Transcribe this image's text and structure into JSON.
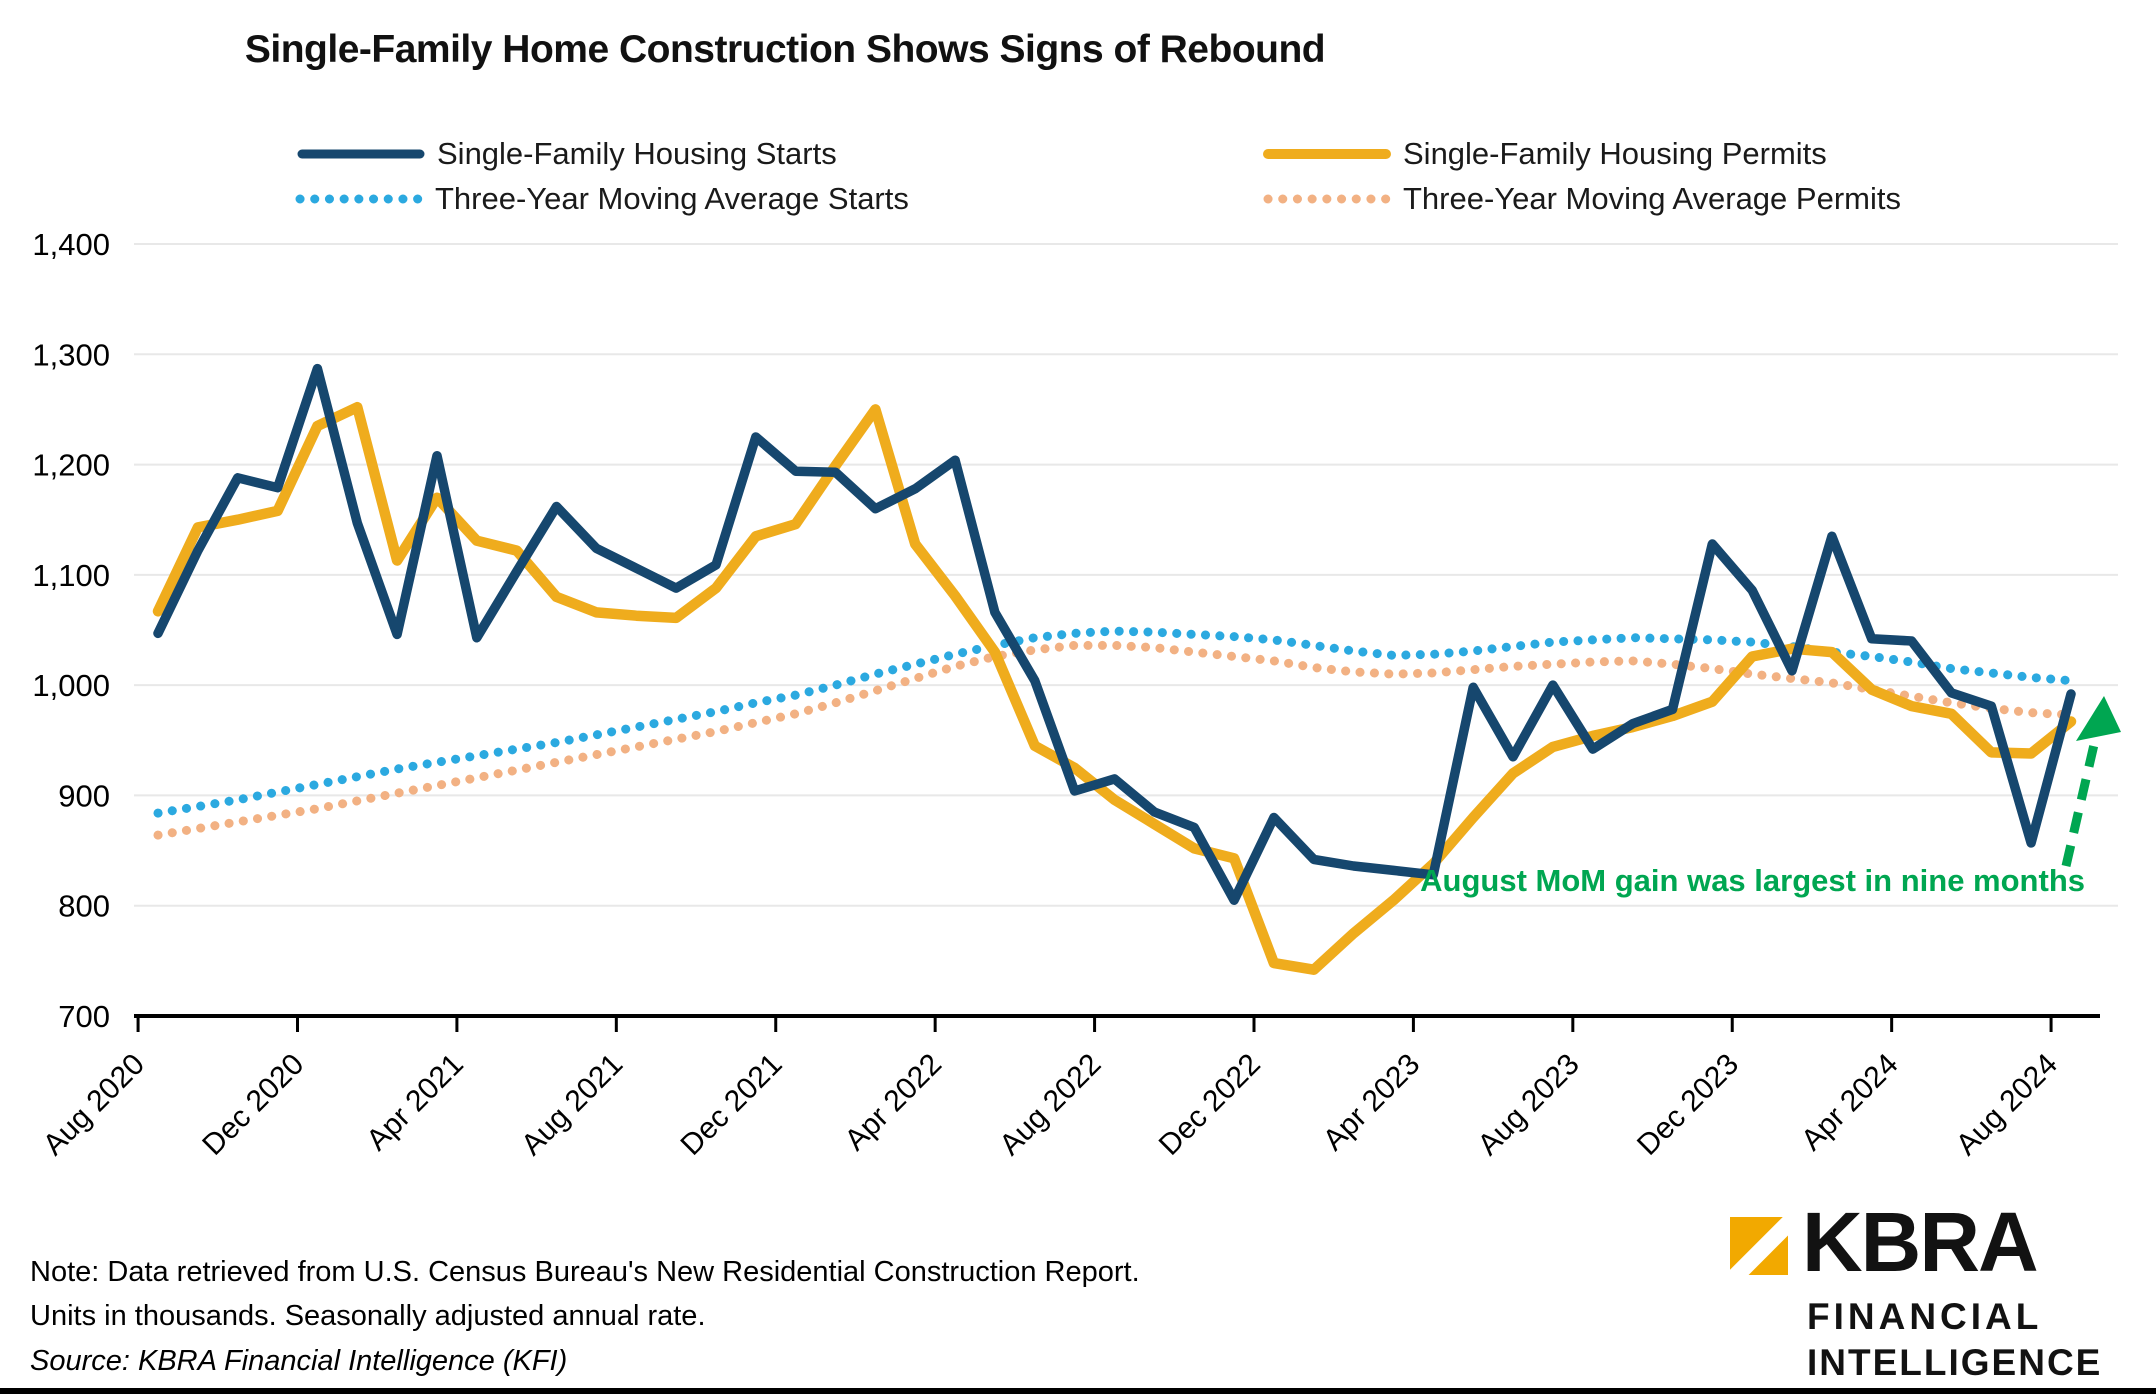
{
  "title": "Single-Family Home Construction Shows Signs of Rebound",
  "notes": {
    "line1": "Note: Data retrieved from U.S. Census Bureau's New Residential Construction Report.",
    "line2": "Units in thousands. Seasonally adjusted annual rate.",
    "source": "Source: KBRA Financial Intelligence (KFI)"
  },
  "logo": {
    "brand": "KBRA",
    "line1": "FINANCIAL",
    "line2": "INTELLIGENCE",
    "mark_color": "#F2A900"
  },
  "colors": {
    "starts": "#16476E",
    "permits": "#EFAC1D",
    "ma_starts": "#2BA9E0",
    "ma_permits": "#F2B183",
    "annotation_green": "#00A651",
    "gridline": "#E8E8E8",
    "axis": "#000000"
  },
  "chart_data": {
    "type": "line",
    "title": "Single-Family Home Construction Shows Signs of Rebound",
    "xlabel": "",
    "ylabel": "",
    "ylim": [
      700,
      1400
    ],
    "ytick_step": 100,
    "grid": "horizontal",
    "legend_position": "top",
    "x_labels": [
      "Aug 2020",
      "Sep 2020",
      "Oct 2020",
      "Nov 2020",
      "Dec 2020",
      "Jan 2021",
      "Feb 2021",
      "Mar 2021",
      "Apr 2021",
      "May 2021",
      "Jun 2021",
      "Jul 2021",
      "Aug 2021",
      "Sep 2021",
      "Oct 2021",
      "Nov 2021",
      "Dec 2021",
      "Jan 2022",
      "Feb 2022",
      "Mar 2022",
      "Apr 2022",
      "May 2022",
      "Jun 2022",
      "Jul 2022",
      "Aug 2022",
      "Sep 2022",
      "Oct 2022",
      "Nov 2022",
      "Dec 2022",
      "Jan 2023",
      "Feb 2023",
      "Mar 2023",
      "Apr 2023",
      "May 2023",
      "Jun 2023",
      "Jul 2023",
      "Aug 2023",
      "Sep 2023",
      "Oct 2023",
      "Nov 2023",
      "Dec 2023",
      "Jan 2024",
      "Feb 2024",
      "Mar 2024",
      "Apr 2024",
      "May 2024",
      "Jun 2024",
      "Jul 2024",
      "Aug 2024"
    ],
    "xtick_labels": [
      "Aug 2020",
      "Dec 2020",
      "Apr 2021",
      "Aug 2021",
      "Dec 2021",
      "Apr 2022",
      "Aug 2022",
      "Dec 2022",
      "Apr 2023",
      "Aug 2023",
      "Dec 2023",
      "Apr 2024",
      "Aug 2024"
    ],
    "ytick_labels": [
      "700",
      "800",
      "900",
      "1,000",
      "1,100",
      "1,200",
      "1,300",
      "1,400"
    ],
    "series": [
      {
        "name": "Single-Family Housing Permits",
        "style": "solid",
        "color": "#EFAC1D",
        "values": [
          1067,
          1143,
          1150,
          1158,
          1235,
          1252,
          1113,
          1170,
          1131,
          1122,
          1080,
          1066,
          1063,
          1061,
          1088,
          1135,
          1146,
          1199,
          1250,
          1128,
          1081,
          1030,
          945,
          925,
          896,
          874,
          852,
          843,
          748,
          742,
          775,
          805,
          838,
          880,
          920,
          944,
          954,
          962,
          972,
          985,
          1026,
          1033,
          1030,
          996,
          981,
          974,
          939,
          938,
          967
        ]
      },
      {
        "name": "Single-Family Housing Starts",
        "style": "solid",
        "color": "#16476E",
        "values": [
          1047,
          1122,
          1188,
          1179,
          1287,
          1147,
          1046,
          1208,
          1043,
          1103,
          1162,
          1124,
          1106,
          1088,
          1109,
          1225,
          1194,
          1193,
          1160,
          1178,
          1204,
          1066,
          1004,
          904,
          915,
          885,
          871,
          805,
          880,
          842,
          836,
          832,
          828,
          998,
          935,
          1000,
          942,
          965,
          978,
          1128,
          1086,
          1013,
          1135,
          1042,
          1040,
          993,
          981,
          857,
          992
        ]
      },
      {
        "name": "Three-Year Moving Average Starts",
        "style": "dotted",
        "color": "#2BA9E0",
        "values": [
          884,
          890,
          896,
          903,
          910,
          917,
          924,
          930,
          936,
          942,
          948,
          955,
          962,
          969,
          976,
          984,
          991,
          1000,
          1010,
          1019,
          1028,
          1036,
          1043,
          1047,
          1049,
          1048,
          1046,
          1044,
          1041,
          1036,
          1031,
          1027,
          1028,
          1031,
          1035,
          1039,
          1041,
          1043,
          1042,
          1041,
          1039,
          1035,
          1030,
          1026,
          1021,
          1015,
          1011,
          1007,
          1004
        ]
      },
      {
        "name": "Three-Year Moving Average Permits",
        "style": "dotted",
        "color": "#F2B183",
        "values": [
          864,
          870,
          876,
          882,
          888,
          895,
          902,
          909,
          916,
          923,
          930,
          937,
          944,
          951,
          958,
          966,
          974,
          984,
          995,
          1006,
          1017,
          1026,
          1032,
          1036,
          1036,
          1034,
          1030,
          1026,
          1022,
          1016,
          1012,
          1010,
          1011,
          1014,
          1017,
          1019,
          1021,
          1022,
          1019,
          1015,
          1010,
          1006,
          1002,
          996,
          990,
          984,
          979,
          975,
          973
        ]
      }
    ],
    "annotation": {
      "text": "August MoM gain was largest in nine months",
      "color": "#00A651",
      "arrow": "dashed-green-up"
    }
  },
  "legend": {
    "items": [
      {
        "label": "Single-Family Housing Starts",
        "series": "Single-Family Housing Starts"
      },
      {
        "label": "Single-Family Housing Permits",
        "series": "Single-Family Housing Permits"
      },
      {
        "label": "Three-Year Moving Average Starts",
        "series": "Three-Year Moving Average Starts"
      },
      {
        "label": "Three-Year Moving Average Permits",
        "series": "Three-Year Moving Average Permits"
      }
    ]
  }
}
